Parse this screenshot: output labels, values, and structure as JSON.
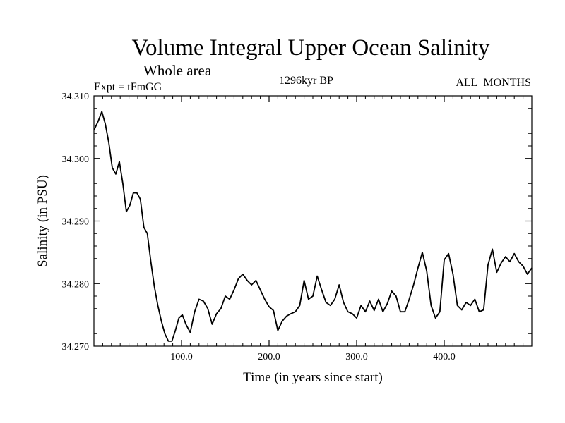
{
  "chart_data": {
    "type": "line",
    "title": "Volume Integral Upper Ocean Salinity",
    "subtitle": "Whole area",
    "annotations": {
      "left": "Expt = tFmGG",
      "center": "1296kyr BP",
      "right": "ALL_MONTHS"
    },
    "xlabel": "Time (in years since start)",
    "ylabel": "Salinity (in PSU)",
    "xlim": [
      0,
      500
    ],
    "ylim": [
      34.27,
      34.31
    ],
    "x_ticks": [
      100,
      200,
      300,
      400
    ],
    "x_tick_labels": [
      "100.0",
      "200.0",
      "300.0",
      "400.0"
    ],
    "y_ticks": [
      34.27,
      34.28,
      34.29,
      34.3,
      34.31
    ],
    "y_tick_labels": [
      "34.270",
      "34.280",
      "34.290",
      "34.300",
      "34.310"
    ],
    "series": [
      {
        "name": "salinity",
        "x": [
          0,
          5,
          9,
          13,
          17,
          21,
          25,
          29,
          33,
          37,
          41,
          45,
          49,
          53,
          57,
          61,
          65,
          69,
          73,
          77,
          81,
          85,
          89,
          93,
          97,
          101,
          105,
          110,
          115,
          120,
          125,
          130,
          135,
          140,
          145,
          150,
          155,
          160,
          165,
          170,
          175,
          180,
          185,
          190,
          195,
          200,
          205,
          210,
          215,
          220,
          225,
          230,
          235,
          240,
          245,
          250,
          255,
          260,
          265,
          270,
          275,
          280,
          285,
          290,
          295,
          300,
          305,
          310,
          315,
          320,
          325,
          330,
          335,
          340,
          345,
          350,
          355,
          360,
          365,
          370,
          375,
          380,
          385,
          390,
          395,
          400,
          405,
          410,
          415,
          420,
          425,
          430,
          435,
          440,
          445,
          450,
          455,
          460,
          465,
          470,
          475,
          480,
          485,
          490,
          495,
          500
        ],
        "y": [
          34.3045,
          34.306,
          34.3075,
          34.3055,
          34.3025,
          34.2985,
          34.2975,
          34.2995,
          34.296,
          34.2915,
          34.2925,
          34.2945,
          34.2945,
          34.2935,
          34.289,
          34.288,
          34.2835,
          34.2795,
          34.2765,
          34.274,
          34.272,
          34.2708,
          34.2708,
          34.2725,
          34.2745,
          34.275,
          34.2735,
          34.2722,
          34.2755,
          34.2775,
          34.2772,
          34.276,
          34.2735,
          34.2752,
          34.276,
          34.278,
          34.2775,
          34.279,
          34.2808,
          34.2815,
          34.2805,
          34.2798,
          34.2805,
          34.279,
          34.2775,
          34.2763,
          34.2757,
          34.2725,
          34.274,
          34.2748,
          34.2752,
          34.2755,
          34.2765,
          34.2805,
          34.2775,
          34.278,
          34.2812,
          34.279,
          34.277,
          34.2765,
          34.2775,
          34.2798,
          34.277,
          34.2755,
          34.2752,
          34.2745,
          34.2765,
          34.2755,
          34.2772,
          34.2757,
          34.2775,
          34.2755,
          34.2768,
          34.2788,
          34.278,
          34.2755,
          34.2755,
          34.2775,
          34.2798,
          34.2825,
          34.285,
          34.282,
          34.2765,
          34.2745,
          34.2755,
          34.2838,
          34.2848,
          34.2815,
          34.2765,
          34.2758,
          34.277,
          34.2765,
          34.2775,
          34.2755,
          34.2758,
          34.283,
          34.2855,
          34.2818,
          34.2833,
          34.2843,
          34.2835,
          34.2848,
          34.2835,
          34.2828,
          34.2815,
          34.2825
        ]
      }
    ]
  }
}
